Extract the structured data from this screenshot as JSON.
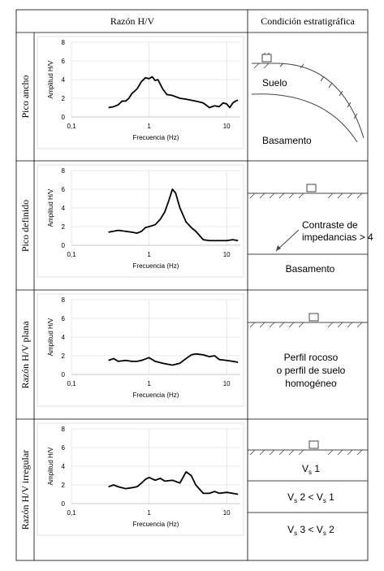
{
  "table": {
    "headers": [
      "Razón H/V",
      "Condición estratigráfica"
    ],
    "rows": [
      {
        "label": "Pico ancho",
        "condition": {
          "texts": [
            "Suelo",
            "Basamento"
          ]
        }
      },
      {
        "label": "Pico definido",
        "condition": {
          "note": [
            "Contraste de",
            "impedancias > 4"
          ],
          "texts": [
            "Basamento"
          ]
        }
      },
      {
        "label": "Razón H/V plana",
        "condition": {
          "lines": [
            "Perfil rocoso",
            "o perfil de suelo",
            "homogéneo"
          ]
        }
      },
      {
        "label": "Razón H/V irregular",
        "condition": {
          "layers": [
            [
              "V",
              "s",
              " 1"
            ],
            [
              "V",
              "s",
              " 2 < V",
              "s",
              " 1"
            ],
            [
              "V",
              "s",
              " 3 < V",
              "s",
              " 2"
            ]
          ]
        }
      }
    ]
  },
  "chart_data": [
    {
      "type": "line",
      "xlabel": "Frecuencia (Hz)",
      "ylabel": "Amplitud H/V",
      "log_x": true,
      "grid": true,
      "color": "#000000",
      "xlim": [
        0.1,
        15
      ],
      "ylim": [
        0,
        8
      ],
      "xticks": [
        {
          "value": 0.1,
          "label": "0,1"
        },
        1,
        10
      ],
      "yticks": [
        0,
        2,
        4,
        6,
        8
      ],
      "x": [
        0.3,
        0.35,
        0.4,
        0.45,
        0.5,
        0.55,
        0.6,
        0.7,
        0.8,
        0.9,
        1.0,
        1.1,
        1.2,
        1.3,
        1.5,
        1.7,
        2.0,
        2.5,
        3,
        4,
        5,
        6,
        7,
        8,
        9,
        10,
        11,
        12,
        13,
        14
      ],
      "values": [
        1.0,
        1.1,
        1.3,
        1.7,
        1.7,
        2.0,
        2.5,
        3.0,
        3.8,
        4.2,
        4.1,
        4.3,
        3.9,
        4.0,
        3.0,
        2.4,
        2.3,
        2.0,
        1.9,
        1.7,
        1.5,
        1.0,
        1.2,
        1.1,
        1.5,
        1.4,
        1.0,
        1.5,
        1.7,
        1.8
      ]
    },
    {
      "type": "line",
      "xlabel": "Frecuencia (Hz)",
      "ylabel": "Amplitud H/V",
      "log_x": true,
      "grid": true,
      "color": "#000000",
      "xlim": [
        0.1,
        15
      ],
      "ylim": [
        0,
        8
      ],
      "xticks": [
        {
          "value": 0.1,
          "label": "0,1"
        },
        1,
        10
      ],
      "yticks": [
        0,
        2,
        4,
        6,
        8
      ],
      "x": [
        0.3,
        0.4,
        0.5,
        0.6,
        0.7,
        0.8,
        0.9,
        1.0,
        1.2,
        1.4,
        1.6,
        1.8,
        2.0,
        2.2,
        2.5,
        3.0,
        3.5,
        4,
        5,
        6,
        8,
        10,
        12,
        14
      ],
      "values": [
        1.4,
        1.6,
        1.5,
        1.4,
        1.3,
        1.5,
        1.9,
        2.0,
        2.2,
        2.8,
        3.6,
        4.8,
        6.0,
        5.6,
        4.0,
        2.5,
        1.9,
        1.5,
        0.6,
        0.5,
        0.5,
        0.5,
        0.6,
        0.5
      ]
    },
    {
      "type": "line",
      "xlabel": "Frecuencia (Hz)",
      "ylabel": "Amplitud H/V",
      "log_x": true,
      "grid": true,
      "color": "#000000",
      "xlim": [
        0.1,
        15
      ],
      "ylim": [
        0,
        8
      ],
      "xticks": [
        {
          "value": 0.1,
          "label": "0,1"
        },
        1,
        10
      ],
      "yticks": [
        0,
        2,
        4,
        6,
        8
      ],
      "x": [
        0.3,
        0.35,
        0.4,
        0.5,
        0.6,
        0.7,
        0.8,
        1.0,
        1.2,
        1.5,
        2.0,
        2.5,
        3,
        3.5,
        4,
        5,
        6,
        7,
        8,
        10,
        12,
        14
      ],
      "values": [
        1.5,
        1.7,
        1.4,
        1.5,
        1.4,
        1.4,
        1.5,
        1.8,
        1.4,
        1.2,
        1.0,
        1.2,
        1.7,
        2.1,
        2.2,
        2.1,
        1.9,
        2.0,
        1.6,
        1.5,
        1.4,
        1.3
      ]
    },
    {
      "type": "line",
      "xlabel": "Frecuencia (Hz)",
      "ylabel": "Amplitud H/V",
      "log_x": true,
      "grid": true,
      "color": "#000000",
      "xlim": [
        0.1,
        15
      ],
      "ylim": [
        0,
        8
      ],
      "xticks": [
        {
          "value": 0.1,
          "label": "0,1"
        },
        1,
        10
      ],
      "yticks": [
        0,
        2,
        4,
        6,
        8
      ],
      "x": [
        0.3,
        0.35,
        0.4,
        0.5,
        0.6,
        0.7,
        0.8,
        0.9,
        1.0,
        1.2,
        1.4,
        1.6,
        2.0,
        2.5,
        3.0,
        3.5,
        4,
        5,
        6,
        7,
        8,
        10,
        12,
        14
      ],
      "values": [
        1.8,
        2.0,
        1.8,
        1.6,
        1.7,
        1.8,
        2.2,
        2.6,
        2.8,
        2.5,
        2.7,
        2.4,
        2.5,
        2.2,
        3.4,
        3.0,
        2.0,
        1.1,
        1.1,
        1.3,
        1.1,
        1.2,
        1.1,
        1.0
      ]
    }
  ]
}
